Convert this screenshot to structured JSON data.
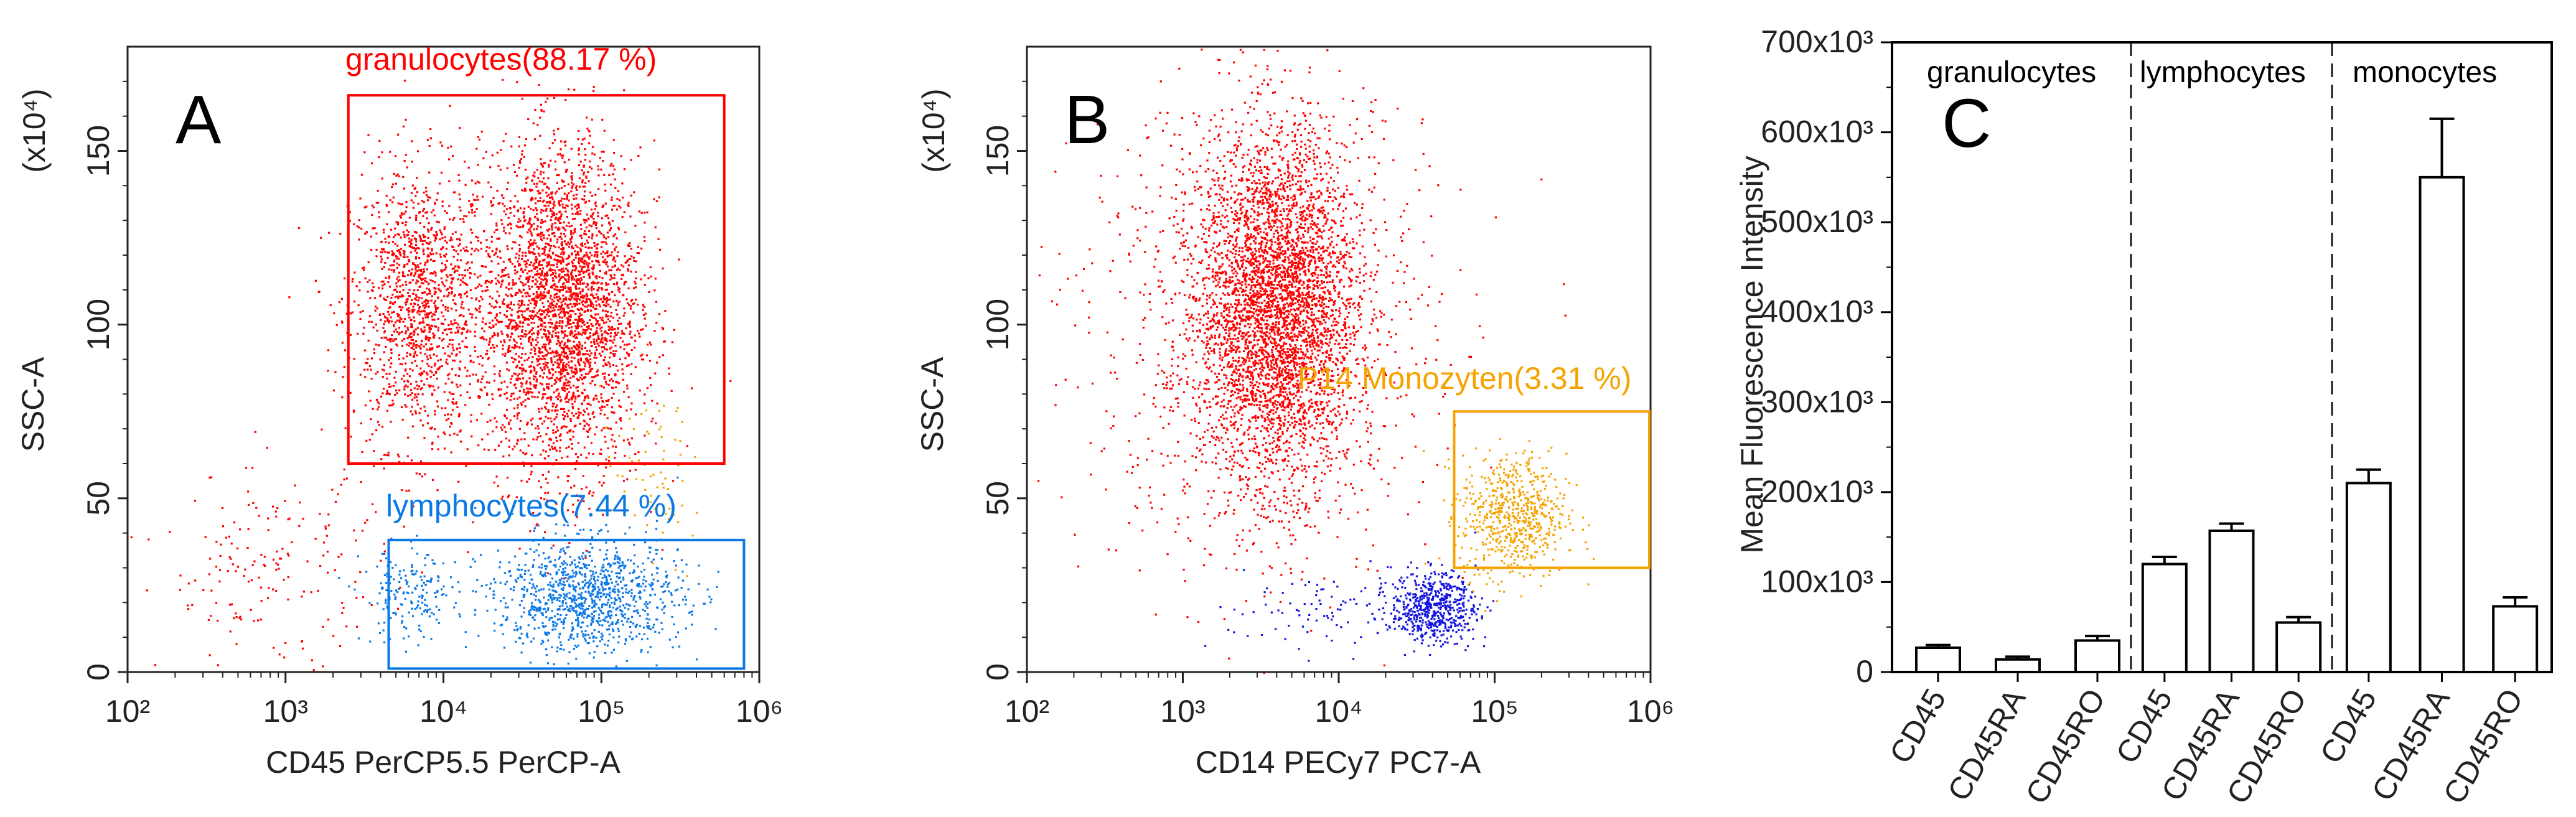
{
  "colors": {
    "granulocytes": "#ff0000",
    "lymphocytes": "#0a78e6",
    "monocytes": "#f5a300",
    "blue_dots": "#1515e0",
    "axis": "#222222",
    "bar_fill": "#ffffff",
    "bar_stroke": "#000000"
  },
  "chart_data": [
    {
      "panel": "A",
      "type": "scatter",
      "xlabel": "CD45 PerCP5.5 PerCP-A",
      "ylabel": "SSC-A",
      "y_multiplier": "(x10⁴)",
      "x_scale": "log",
      "xlim": [
        100,
        1000000
      ],
      "ylim": [
        0,
        180
      ],
      "x_ticks": [
        "10²",
        "10³",
        "10⁴",
        "10⁵",
        "10⁶"
      ],
      "y_ticks": [
        "0",
        "50",
        "100",
        "150"
      ],
      "gates": [
        {
          "name": "granulocytes",
          "label": "granulocytes(88.17 %)",
          "x_range": [
            2500,
            600000
          ],
          "y_range": [
            60,
            166
          ],
          "color": "#ff0000"
        },
        {
          "name": "lymphocytes",
          "label": "lymphocytes(7.44 %)",
          "x_range": [
            4500,
            800000
          ],
          "y_range": [
            1,
            38
          ],
          "color": "#0a78e6"
        }
      ],
      "populations": [
        {
          "name": "granulocytes-left",
          "color": "#ff0000",
          "x_center": 7000,
          "y_center": 105,
          "x_spread_log": 0.22,
          "y_spread": 20,
          "n": 1400
        },
        {
          "name": "granulocytes-main",
          "color": "#ff0000",
          "x_center": 55000,
          "y_center": 105,
          "x_spread_log": 0.25,
          "y_spread": 23,
          "n": 3200
        },
        {
          "name": "scatter-low",
          "color": "#ff0000",
          "x_center": 800,
          "y_center": 30,
          "x_spread_log": 0.35,
          "y_spread": 14,
          "n": 180
        },
        {
          "name": "lymphocytes-left",
          "color": "#0a78e6",
          "x_center": 6000,
          "y_center": 22,
          "x_spread_log": 0.15,
          "y_spread": 7,
          "n": 180
        },
        {
          "name": "lymphocytes-main",
          "color": "#0a78e6",
          "x_center": 80000,
          "y_center": 22,
          "x_spread_log": 0.3,
          "y_spread": 8,
          "n": 1100
        },
        {
          "name": "monocytes",
          "color": "#f5a300",
          "x_center": 200000,
          "y_center": 55,
          "x_spread_log": 0.15,
          "y_spread": 12,
          "n": 70
        }
      ]
    },
    {
      "panel": "B",
      "type": "scatter",
      "xlabel": "CD14 PECy7 PC7-A",
      "ylabel": "SSC-A",
      "y_multiplier": "(x10⁴)",
      "x_scale": "log",
      "xlim": [
        100,
        1000000
      ],
      "ylim": [
        0,
        180
      ],
      "x_ticks": [
        "10²",
        "10³",
        "10⁴",
        "10⁵",
        "10⁶"
      ],
      "y_ticks": [
        "0",
        "50",
        "100",
        "150"
      ],
      "gates": [
        {
          "name": "monocytes",
          "label": "P14 Monozyten(3.31 %)",
          "x_range": [
            55000,
            1500000
          ],
          "y_range": [
            30,
            75
          ],
          "color": "#f5a300"
        }
      ],
      "populations": [
        {
          "name": "granulocytes-main",
          "color": "#ff0000",
          "x_center": 4000,
          "y_center": 105,
          "x_spread_log": 0.25,
          "y_spread": 25,
          "n": 3800
        },
        {
          "name": "granulocytes-wide",
          "color": "#ff0000",
          "x_center": 3000,
          "y_center": 100,
          "x_spread_log": 0.55,
          "y_spread": 35,
          "n": 1200
        },
        {
          "name": "lymphocytes",
          "color": "#1515e0",
          "x_center": 40000,
          "y_center": 19,
          "x_spread_log": 0.14,
          "y_spread": 5,
          "n": 600
        },
        {
          "name": "lymphocytes-tail",
          "color": "#1515e0",
          "x_center": 8000,
          "y_center": 18,
          "x_spread_log": 0.35,
          "y_spread": 6,
          "n": 90
        },
        {
          "name": "monocytes",
          "color": "#f5a300",
          "x_center": 130000,
          "y_center": 45,
          "x_spread_log": 0.17,
          "y_spread": 9,
          "n": 650
        }
      ]
    },
    {
      "panel": "C",
      "type": "bar",
      "ylabel": "Mean Fluorescence Intensity",
      "ylim": [
        0,
        700000
      ],
      "y_ticks": [
        {
          "value": 0,
          "label": "0"
        },
        {
          "value": 100000,
          "label": "100x10³"
        },
        {
          "value": 200000,
          "label": "200x10³"
        },
        {
          "value": 300000,
          "label": "300x10³"
        },
        {
          "value": 400000,
          "label": "400x10³"
        },
        {
          "value": 500000,
          "label": "500x10³"
        },
        {
          "value": 600000,
          "label": "600x10³"
        },
        {
          "value": 700000,
          "label": "700x10³"
        }
      ],
      "groups": [
        "granulocytes",
        "lymphocytes",
        "monocytes"
      ],
      "categories": [
        "CD45",
        "CD45RA",
        "CD45RO"
      ],
      "series": [
        {
          "name": "granulocytes",
          "values": [
            27000,
            14000,
            35000
          ],
          "errors": [
            3000,
            3000,
            5000
          ]
        },
        {
          "name": "lymphocytes",
          "values": [
            120000,
            157000,
            55000
          ],
          "errors": [
            8000,
            8000,
            6000
          ]
        },
        {
          "name": "monocytes",
          "values": [
            210000,
            550000,
            73000
          ],
          "errors": [
            15000,
            65000,
            10000
          ]
        }
      ]
    }
  ]
}
